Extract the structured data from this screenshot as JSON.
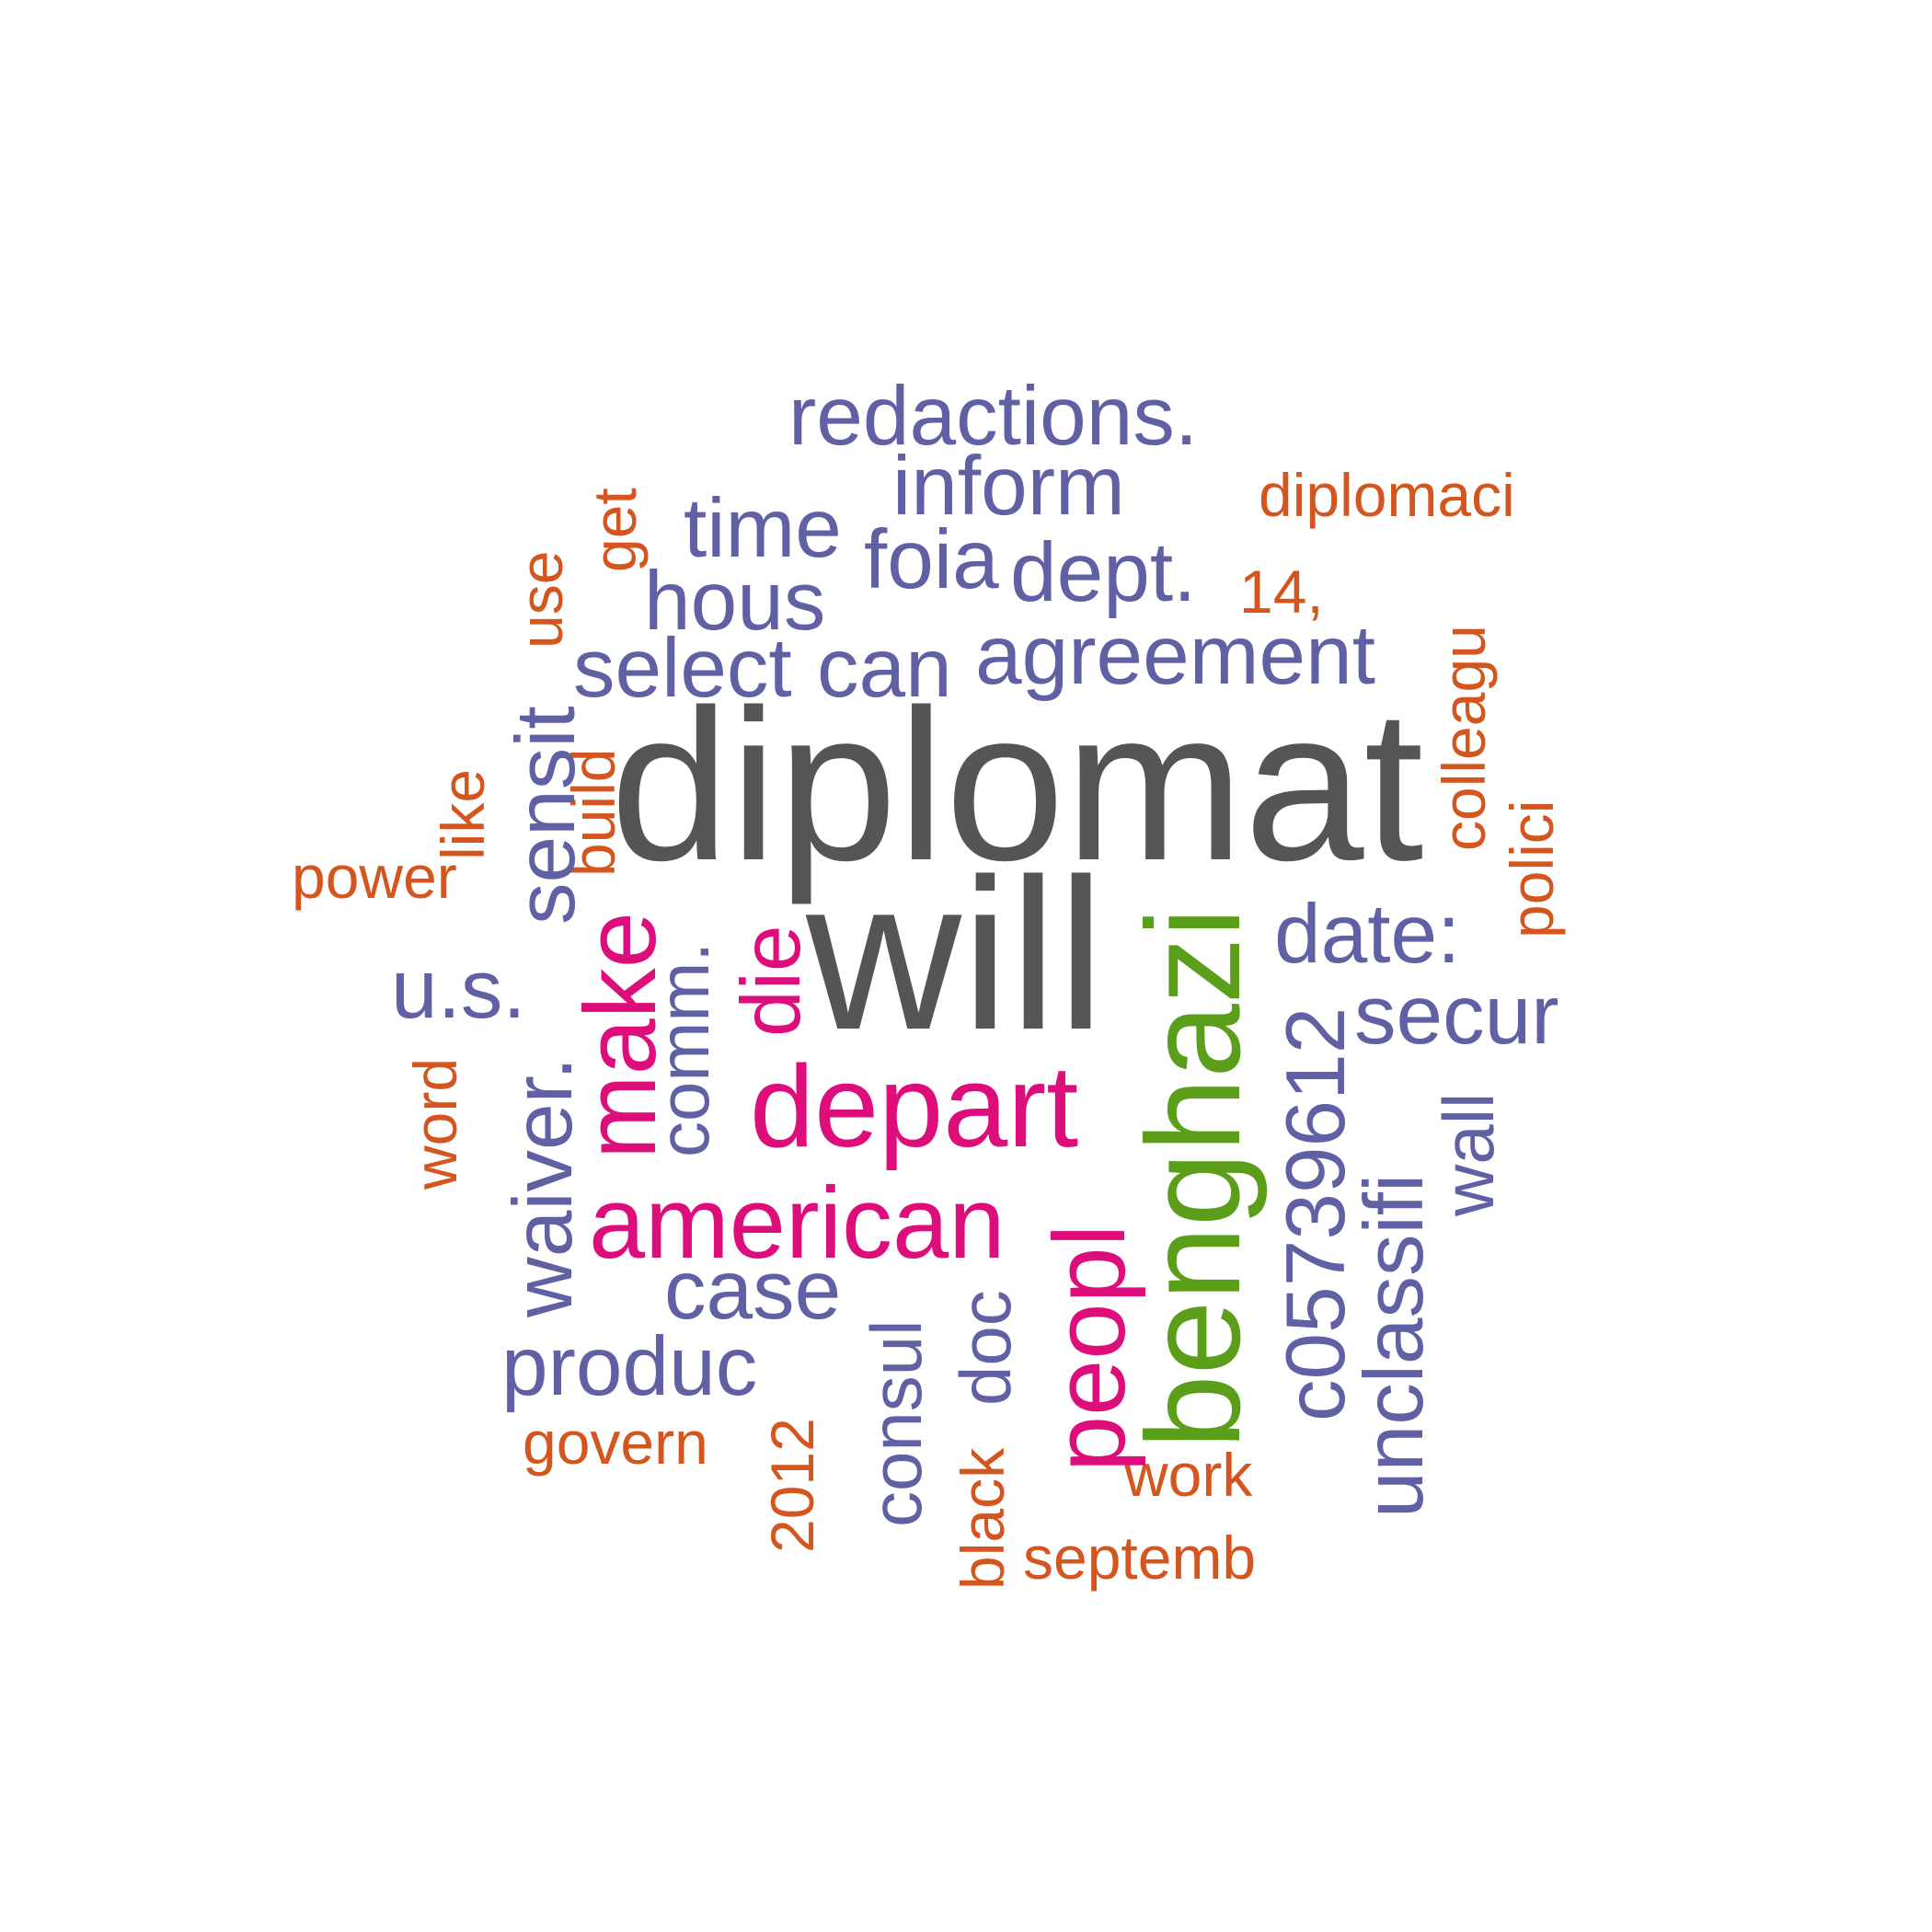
{
  "colors": {
    "dark": "#555555",
    "purple": "#6060a4",
    "orange": "#d4551d",
    "magenta": "#dd0d7c",
    "green": "#5a9e1a"
  },
  "words": {
    "redactions": "redactions.",
    "inform": "inform",
    "diplomaci": "diplomaci",
    "time": "time",
    "foia": "foia",
    "dept": "dept.",
    "fourteen": "14,",
    "hous": "hous",
    "select": "select",
    "can": "can",
    "agreement": "agreement",
    "diplomat": "diplomat",
    "power": "power",
    "will": "will",
    "date": "date:",
    "us": "u.s.",
    "secur": "secur",
    "depart": "depart",
    "american": "american",
    "case": "case",
    "produc": "produc",
    "govern": "govern",
    "work": "work",
    "septemb": "septemb",
    "get": "get",
    "use": "use",
    "colleagu": "colleagu",
    "like": "like",
    "build": "build",
    "sensit": "sensit",
    "polici": "polici",
    "die": "die",
    "comm": "comm.",
    "make": "make",
    "word": "word",
    "wall": "wall",
    "waiver": "waiver.",
    "c05739612": "c05739612",
    "peopl": "peopl",
    "unclassifi": "unclassifi",
    "doc": "doc",
    "consul": "consul",
    "year_2012": "2012",
    "benghazi": "benghazi",
    "black": "black"
  }
}
